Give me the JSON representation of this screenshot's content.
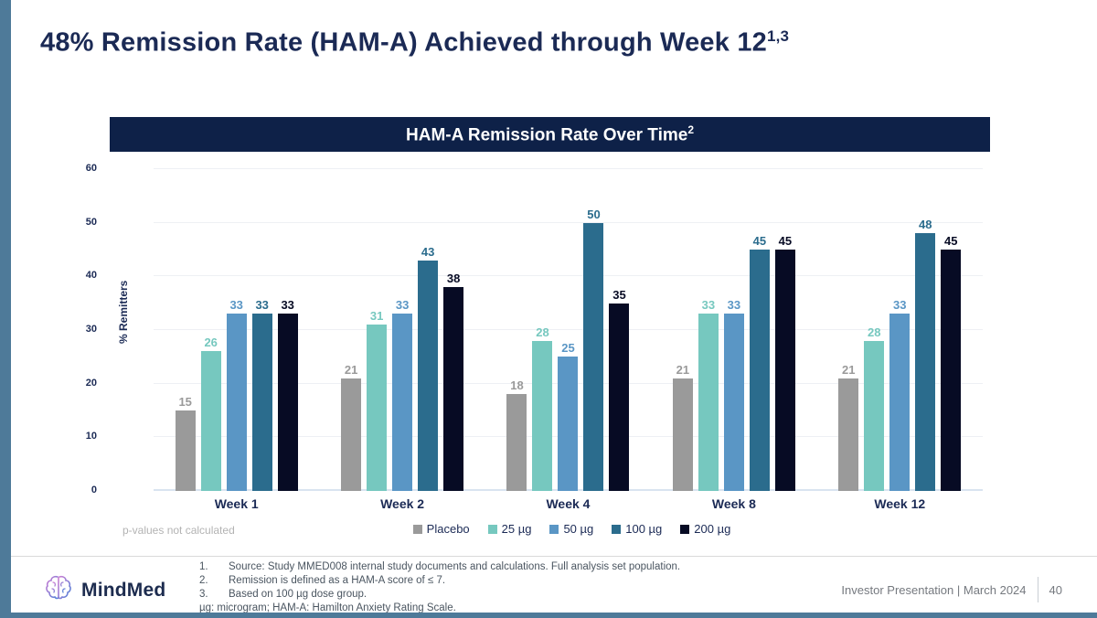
{
  "slide": {
    "title": "48% Remission Rate (HAM-A) Achieved through Week 12",
    "title_superscript": "1,3",
    "accent_color": "#4e7a99"
  },
  "chart": {
    "header": "HAM-A Remission Rate Over Time",
    "header_superscript": "2",
    "header_bg": "#0e2148",
    "note": "p-values not calculated"
  },
  "chart_data": {
    "type": "bar",
    "title": "HAM-A Remission Rate Over Time",
    "xlabel": "",
    "ylabel": "% Remitters",
    "ylim": [
      0,
      60
    ],
    "yticks": [
      0,
      10,
      20,
      30,
      40,
      50,
      60
    ],
    "grid": true,
    "legend_position": "bottom",
    "categories": [
      "Week 1",
      "Week 2",
      "Week 4",
      "Week 8",
      "Week 12"
    ],
    "series": [
      {
        "name": "Placebo",
        "color": "#9a9a9a",
        "values": [
          15,
          21,
          18,
          21,
          21
        ]
      },
      {
        "name": "25 µg",
        "color": "#76c8bf",
        "values": [
          26,
          31,
          28,
          33,
          28
        ]
      },
      {
        "name": "50 µg",
        "color": "#5a96c5",
        "values": [
          33,
          33,
          25,
          33,
          33
        ]
      },
      {
        "name": "100 µg",
        "color": "#2b6c8d",
        "values": [
          33,
          43,
          50,
          45,
          48
        ]
      },
      {
        "name": "200 µg",
        "color": "#070b24",
        "values": [
          33,
          38,
          35,
          45,
          45
        ]
      }
    ]
  },
  "footnotes": {
    "items": [
      {
        "num": "1.",
        "text": "Source: Study MMED008 internal study documents and calculations. Full analysis set population."
      },
      {
        "num": "2.",
        "text": "Remission is defined as a HAM-A score of ≤ 7."
      },
      {
        "num": "3.",
        "text": "Based on 100 µg dose group."
      }
    ],
    "abbrev": "µg: microgram; HAM-A: Hamilton Anxiety Rating Scale."
  },
  "footer": {
    "brand": "MindMed",
    "right_text": "Investor Presentation | March 2024",
    "page_number": "40"
  }
}
